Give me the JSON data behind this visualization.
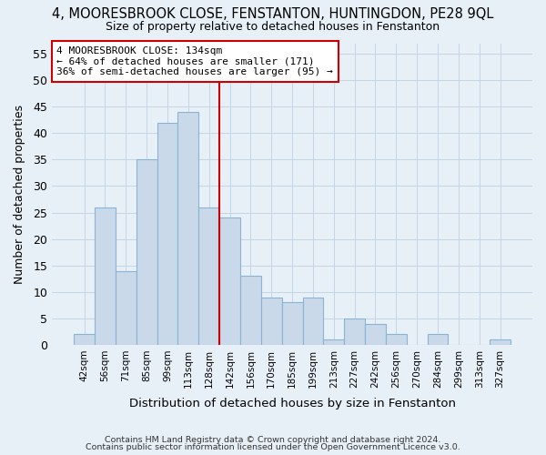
{
  "title": "4, MOORESBROOK CLOSE, FENSTANTON, HUNTINGDON, PE28 9QL",
  "subtitle": "Size of property relative to detached houses in Fenstanton",
  "xlabel": "Distribution of detached houses by size in Fenstanton",
  "ylabel": "Number of detached properties",
  "footnote1": "Contains HM Land Registry data © Crown copyright and database right 2024.",
  "footnote2": "Contains public sector information licensed under the Open Government Licence v3.0.",
  "categories": [
    "42sqm",
    "56sqm",
    "71sqm",
    "85sqm",
    "99sqm",
    "113sqm",
    "128sqm",
    "142sqm",
    "156sqm",
    "170sqm",
    "185sqm",
    "199sqm",
    "213sqm",
    "227sqm",
    "242sqm",
    "256sqm",
    "270sqm",
    "284sqm",
    "299sqm",
    "313sqm",
    "327sqm"
  ],
  "bar_values": [
    2,
    26,
    14,
    35,
    42,
    44,
    26,
    24,
    13,
    9,
    8,
    9,
    1,
    5,
    4,
    2,
    0,
    2,
    0,
    0,
    1
  ],
  "bar_color": "#c9d9ea",
  "bar_edgecolor": "#8ab4d4",
  "grid_color": "#c5d5e5",
  "background_color": "#e8f0f7",
  "marker_line_bar_index": 6,
  "annotation_title": "4 MOORESBROOK CLOSE: 134sqm",
  "annotation_line1": "← 64% of detached houses are smaller (171)",
  "annotation_line2": "36% of semi-detached houses are larger (95) →",
  "annotation_box_facecolor": "#ffffff",
  "annotation_box_edgecolor": "#cc0000",
  "ylim": [
    0,
    57
  ],
  "yticks": [
    0,
    5,
    10,
    15,
    20,
    25,
    30,
    35,
    40,
    45,
    50,
    55
  ]
}
